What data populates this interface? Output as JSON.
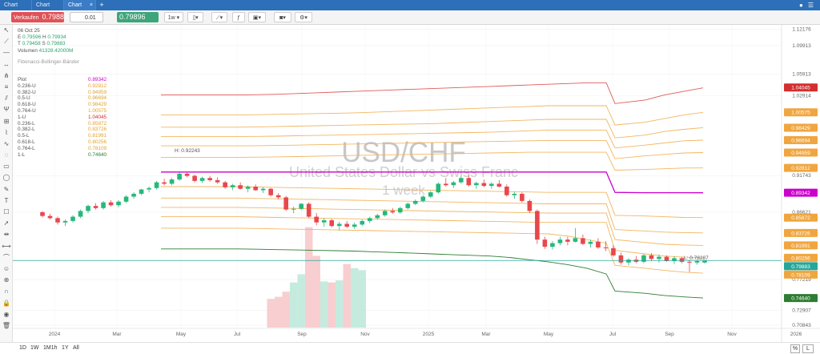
{
  "tabs": [
    "Chart",
    "Chart",
    "Chart"
  ],
  "tab_close": "×",
  "new_tab": "+",
  "toolbar": {
    "sell_label": "Verkaufen",
    "sell_price": "0.79883",
    "quantity": "0.01",
    "buy_price": "0.79896",
    "buy_label": "Kaufen",
    "timeframe": "1w"
  },
  "legend": {
    "date": "06 Oct 25",
    "open_label": "E",
    "open": "0.79596",
    "high_label": "H",
    "high": "0.79934",
    "low_label": "T",
    "low": "0.79458",
    "close_label": "S",
    "close": "0.79883",
    "volume_label": "Volumen",
    "volume": "41328.42000M",
    "indicator": "Fibonacci-Bollinger-Bänder"
  },
  "fib_table": [
    {
      "label": "Plot",
      "value": "0.89342",
      "color": "#cc00cc"
    },
    {
      "label": "0.236-U",
      "value": "0.92812",
      "color": "#e2a32e"
    },
    {
      "label": "0.382-U",
      "value": "0.94959",
      "color": "#e2a32e"
    },
    {
      "label": "0.5-U",
      "value": "0.96694",
      "color": "#e2a32e"
    },
    {
      "label": "0.618-U",
      "value": "0.98429",
      "color": "#e2a32e"
    },
    {
      "label": "0.764-U",
      "value": "1.00575",
      "color": "#e2a32e"
    },
    {
      "label": "1-U",
      "value": "1.04045",
      "color": "#d32f2f"
    },
    {
      "label": "0.236-L",
      "value": "0.85872",
      "color": "#e2a32e"
    },
    {
      "label": "0.382-L",
      "value": "0.83726",
      "color": "#e2a32e"
    },
    {
      "label": "0.5-L",
      "value": "0.81991",
      "color": "#e2a32e"
    },
    {
      "label": "0.618-L",
      "value": "0.80256",
      "color": "#e2a32e"
    },
    {
      "label": "0.764-L",
      "value": "0.78109",
      "color": "#e2a32e"
    },
    {
      "label": "1-L",
      "value": "0.74640",
      "color": "#2e7d32"
    }
  ],
  "watermark": {
    "symbol": "USD/CHF",
    "name": "United States Dollar vs Swiss Franc",
    "interval": "1 week"
  },
  "annotations": {
    "high": "H: 0.92243",
    "low": "L: 0.78287"
  },
  "y_axis_ticks": [
    "1.12176",
    "1.09913",
    "1.05913",
    "1.02914",
    "0.91743",
    "0.86621",
    "0.77219",
    "0.72907",
    "0.70843"
  ],
  "price_tags": [
    {
      "value": "1.04045",
      "color": "#d32f2f"
    },
    {
      "value": "1.00575",
      "color": "#f0a640"
    },
    {
      "value": "0.98429",
      "color": "#f0a640"
    },
    {
      "value": "0.96694",
      "color": "#f0a640"
    },
    {
      "value": "0.94959",
      "color": "#f0a640"
    },
    {
      "value": "0.92812",
      "color": "#f0a640"
    },
    {
      "value": "0.89342",
      "color": "#cc00cc"
    },
    {
      "value": "0.85872",
      "color": "#f0a640"
    },
    {
      "value": "0.83726",
      "color": "#f0a640"
    },
    {
      "value": "0.81991",
      "color": "#f0a640"
    },
    {
      "value": "0.80256",
      "color": "#f0a640"
    },
    {
      "value": "0.79883",
      "color": "#26a69a"
    },
    {
      "value": "0.78109",
      "color": "#f0a640"
    },
    {
      "value": "0.74640",
      "color": "#2e7d32"
    }
  ],
  "x_axis_labels": [
    "2024",
    "Mar",
    "May",
    "Jul",
    "Sep",
    "Nov",
    "2025",
    "Mar",
    "May",
    "Jul",
    "Sep",
    "Nov",
    "2026"
  ],
  "bottom": {
    "ranges": [
      "1D",
      "1W",
      "1M1h",
      "1Y",
      "All"
    ],
    "percent": "%",
    "log": "L"
  },
  "colors": {
    "up": "#26b87a",
    "down": "#e8474c",
    "current": "#26a69a"
  },
  "chart_data": {
    "type": "candlestick",
    "ohlc_note": "weekly candles estimated",
    "candles": [
      [
        0.8662,
        0.868,
        0.859,
        0.861
      ],
      [
        0.861,
        0.864,
        0.856,
        0.858
      ],
      [
        0.858,
        0.86,
        0.849,
        0.852
      ],
      [
        0.852,
        0.856,
        0.847,
        0.854
      ],
      [
        0.854,
        0.862,
        0.852,
        0.86
      ],
      [
        0.86,
        0.87,
        0.858,
        0.868
      ],
      [
        0.868,
        0.877,
        0.865,
        0.875
      ],
      [
        0.875,
        0.879,
        0.87,
        0.872
      ],
      [
        0.872,
        0.882,
        0.87,
        0.88
      ],
      [
        0.88,
        0.883,
        0.874,
        0.876
      ],
      [
        0.876,
        0.883,
        0.873,
        0.881
      ],
      [
        0.881,
        0.89,
        0.879,
        0.888
      ],
      [
        0.888,
        0.894,
        0.885,
        0.892
      ],
      [
        0.892,
        0.899,
        0.89,
        0.898
      ],
      [
        0.898,
        0.902,
        0.894,
        0.9
      ],
      [
        0.9,
        0.91,
        0.898,
        0.908
      ],
      [
        0.908,
        0.913,
        0.904,
        0.906
      ],
      [
        0.906,
        0.914,
        0.904,
        0.912
      ],
      [
        0.912,
        0.922,
        0.91,
        0.92
      ],
      [
        0.92,
        0.9224,
        0.915,
        0.917
      ],
      [
        0.917,
        0.919,
        0.908,
        0.91
      ],
      [
        0.91,
        0.916,
        0.907,
        0.914
      ],
      [
        0.914,
        0.917,
        0.909,
        0.911
      ],
      [
        0.911,
        0.915,
        0.906,
        0.908
      ],
      [
        0.908,
        0.91,
        0.899,
        0.901
      ],
      [
        0.901,
        0.906,
        0.897,
        0.904
      ],
      [
        0.904,
        0.908,
        0.898,
        0.899
      ],
      [
        0.899,
        0.904,
        0.894,
        0.902
      ],
      [
        0.902,
        0.905,
        0.896,
        0.897
      ],
      [
        0.897,
        0.901,
        0.893,
        0.899
      ],
      [
        0.899,
        0.9,
        0.888,
        0.89
      ],
      [
        0.89,
        0.893,
        0.884,
        0.887
      ],
      [
        0.887,
        0.889,
        0.868,
        0.87
      ],
      [
        0.87,
        0.874,
        0.865,
        0.871
      ],
      [
        0.871,
        0.879,
        0.869,
        0.878
      ],
      [
        0.878,
        0.88,
        0.858,
        0.86
      ],
      [
        0.86,
        0.865,
        0.848,
        0.852
      ],
      [
        0.852,
        0.858,
        0.846,
        0.855
      ],
      [
        0.855,
        0.857,
        0.845,
        0.847
      ],
      [
        0.847,
        0.853,
        0.841,
        0.85
      ],
      [
        0.85,
        0.854,
        0.844,
        0.846
      ],
      [
        0.846,
        0.852,
        0.843,
        0.849
      ],
      [
        0.849,
        0.856,
        0.847,
        0.854
      ],
      [
        0.854,
        0.86,
        0.851,
        0.858
      ],
      [
        0.858,
        0.864,
        0.856,
        0.862
      ],
      [
        0.862,
        0.87,
        0.86,
        0.868
      ],
      [
        0.868,
        0.872,
        0.864,
        0.866
      ],
      [
        0.866,
        0.874,
        0.864,
        0.872
      ],
      [
        0.872,
        0.88,
        0.87,
        0.878
      ],
      [
        0.878,
        0.884,
        0.876,
        0.882
      ],
      [
        0.882,
        0.89,
        0.88,
        0.888
      ],
      [
        0.888,
        0.896,
        0.886,
        0.894
      ],
      [
        0.894,
        0.908,
        0.892,
        0.906
      ],
      [
        0.906,
        0.914,
        0.902,
        0.904
      ],
      [
        0.904,
        0.91,
        0.9,
        0.908
      ],
      [
        0.908,
        0.916,
        0.906,
        0.914
      ],
      [
        0.914,
        0.918,
        0.902,
        0.904
      ],
      [
        0.904,
        0.909,
        0.899,
        0.907
      ],
      [
        0.907,
        0.912,
        0.901,
        0.903
      ],
      [
        0.903,
        0.908,
        0.899,
        0.906
      ],
      [
        0.906,
        0.911,
        0.901,
        0.902
      ],
      [
        0.902,
        0.905,
        0.888,
        0.89
      ],
      [
        0.89,
        0.895,
        0.885,
        0.892
      ],
      [
        0.892,
        0.894,
        0.88,
        0.882
      ],
      [
        0.882,
        0.884,
        0.865,
        0.868
      ],
      [
        0.868,
        0.87,
        0.822,
        0.828
      ],
      [
        0.828,
        0.832,
        0.815,
        0.818
      ],
      [
        0.818,
        0.826,
        0.814,
        0.823
      ],
      [
        0.823,
        0.832,
        0.82,
        0.828
      ],
      [
        0.828,
        0.832,
        0.82,
        0.825
      ],
      [
        0.825,
        0.844,
        0.824,
        0.83
      ],
      [
        0.83,
        0.835,
        0.82,
        0.822
      ],
      [
        0.822,
        0.828,
        0.817,
        0.825
      ],
      [
        0.825,
        0.83,
        0.815,
        0.817
      ],
      [
        0.817,
        0.826,
        0.812,
        0.816
      ],
      [
        0.816,
        0.82,
        0.804,
        0.806
      ],
      [
        0.806,
        0.81,
        0.793,
        0.796
      ],
      [
        0.796,
        0.802,
        0.792,
        0.8
      ],
      [
        0.8,
        0.805,
        0.795,
        0.797
      ],
      [
        0.797,
        0.808,
        0.795,
        0.806
      ],
      [
        0.806,
        0.809,
        0.798,
        0.801
      ],
      [
        0.801,
        0.807,
        0.796,
        0.804
      ],
      [
        0.804,
        0.806,
        0.797,
        0.798
      ],
      [
        0.798,
        0.805,
        0.794,
        0.802
      ],
      [
        0.802,
        0.804,
        0.795,
        0.797
      ],
      [
        0.797,
        0.8,
        0.7829,
        0.796
      ],
      [
        0.796,
        0.8,
        0.793,
        0.798
      ],
      [
        0.796,
        0.7993,
        0.7946,
        0.7988
      ]
    ],
    "volume": [
      0,
      0,
      0,
      0,
      0,
      0,
      0,
      0,
      0,
      0,
      0,
      0,
      0,
      0,
      0,
      0,
      0,
      0,
      0,
      0,
      0,
      0,
      0,
      0,
      0,
      0,
      0,
      0,
      0,
      0,
      0.28,
      0.3,
      0.35,
      0.44,
      0.52,
      0.98,
      0.7,
      0.45,
      0.44,
      0.46,
      0.62,
      0.58,
      0.56,
      0,
      0,
      0,
      0,
      0,
      0,
      0,
      0,
      0,
      0,
      0,
      0,
      0,
      0,
      0,
      0,
      0,
      0,
      0,
      0,
      0,
      0,
      0,
      0,
      0,
      0,
      0,
      0,
      0,
      0,
      0,
      0,
      0,
      0,
      0,
      0,
      0,
      0,
      0,
      0,
      0,
      0,
      0,
      0
    ],
    "bands": {
      "1-U": [
        1.03,
        1.03,
        1.03,
        1.03,
        1.03,
        1.0305,
        1.031,
        1.032,
        1.033,
        1.034,
        1.035,
        1.036,
        1.037,
        1.038,
        1.039,
        1.04,
        1.041,
        1.042,
        1.043,
        1.044,
        1.045,
        1.046,
        1.047,
        1.047,
        1.018,
        1.023,
        1.03,
        1.035,
        1.04
      ],
      "0.764-U": [
        1.002,
        1.002,
        1.002,
        1.002,
        1.002,
        1.0025,
        1.003,
        1.0035,
        1.004,
        1.0045,
        1.005,
        1.006,
        1.007,
        1.008,
        1.009,
        1.01,
        1.011,
        1.012,
        1.013,
        1.014,
        1.015,
        1.015,
        1.015,
        1.015,
        0.988,
        0.992,
        0.997,
        1.002,
        1.0057
      ],
      "0.618-U": [
        0.985,
        0.985,
        0.985,
        0.985,
        0.985,
        0.9855,
        0.986,
        0.9865,
        0.987,
        0.9875,
        0.988,
        0.9885,
        0.989,
        0.9895,
        0.99,
        0.991,
        0.992,
        0.993,
        0.994,
        0.995,
        0.996,
        0.996,
        0.996,
        0.996,
        0.97,
        0.974,
        0.979,
        0.982,
        0.9843
      ],
      "0.5-U": [
        0.972,
        0.972,
        0.972,
        0.972,
        0.972,
        0.9722,
        0.9725,
        0.973,
        0.9735,
        0.974,
        0.9745,
        0.975,
        0.9755,
        0.976,
        0.9765,
        0.977,
        0.9775,
        0.978,
        0.979,
        0.98,
        0.981,
        0.981,
        0.981,
        0.981,
        0.956,
        0.96,
        0.963,
        0.966,
        0.9669
      ],
      "0.382-U": [
        0.959,
        0.959,
        0.959,
        0.959,
        0.959,
        0.9592,
        0.9595,
        0.96,
        0.9605,
        0.961,
        0.9615,
        0.962,
        0.9625,
        0.963,
        0.9635,
        0.964,
        0.9645,
        0.965,
        0.9655,
        0.966,
        0.9665,
        0.9665,
        0.9665,
        0.9665,
        0.941,
        0.945,
        0.947,
        0.949,
        0.9496
      ],
      "0.236-U": [
        0.943,
        0.943,
        0.943,
        0.943,
        0.943,
        0.9432,
        0.9435,
        0.944,
        0.9445,
        0.945,
        0.9455,
        0.946,
        0.9465,
        0.947,
        0.9475,
        0.948,
        0.9485,
        0.949,
        0.9495,
        0.95,
        0.95,
        0.95,
        0.95,
        0.95,
        0.925,
        0.926,
        0.927,
        0.928,
        0.9281
      ],
      "Plot": [
        0.9224,
        0.9224,
        0.9224,
        0.9224,
        0.9224,
        0.9224,
        0.9224,
        0.9224,
        0.9224,
        0.9224,
        0.9224,
        0.9224,
        0.9224,
        0.9224,
        0.9224,
        0.9224,
        0.9224,
        0.9224,
        0.9224,
        0.9224,
        0.9224,
        0.9224,
        0.9224,
        0.9224,
        0.894,
        0.8935,
        0.8935,
        0.8935,
        0.8934
      ],
      "0.236-L": [
        0.902,
        0.902,
        0.902,
        0.902,
        0.902,
        0.9015,
        0.901,
        0.9005,
        0.9,
        0.8995,
        0.899,
        0.8985,
        0.898,
        0.8975,
        0.897,
        0.8965,
        0.896,
        0.8955,
        0.895,
        0.8945,
        0.894,
        0.894,
        0.894,
        0.894,
        0.862,
        0.861,
        0.86,
        0.859,
        0.8587
      ],
      "0.382-L": [
        0.886,
        0.886,
        0.886,
        0.886,
        0.886,
        0.8855,
        0.885,
        0.8845,
        0.884,
        0.8835,
        0.883,
        0.8825,
        0.882,
        0.8815,
        0.881,
        0.8805,
        0.88,
        0.8795,
        0.879,
        0.8785,
        0.878,
        0.878,
        0.878,
        0.878,
        0.842,
        0.84,
        0.8385,
        0.8378,
        0.8373
      ],
      "0.5-L": [
        0.873,
        0.873,
        0.873,
        0.873,
        0.873,
        0.8725,
        0.872,
        0.8715,
        0.871,
        0.8705,
        0.87,
        0.8695,
        0.869,
        0.8685,
        0.868,
        0.8675,
        0.867,
        0.8665,
        0.866,
        0.8655,
        0.865,
        0.865,
        0.865,
        0.865,
        0.828,
        0.824,
        0.8215,
        0.8205,
        0.8199
      ],
      "0.618-L": [
        0.86,
        0.86,
        0.86,
        0.86,
        0.86,
        0.8595,
        0.859,
        0.8585,
        0.858,
        0.8575,
        0.857,
        0.8565,
        0.856,
        0.8555,
        0.855,
        0.8545,
        0.854,
        0.8535,
        0.853,
        0.8525,
        0.852,
        0.852,
        0.852,
        0.852,
        0.813,
        0.808,
        0.805,
        0.8035,
        0.8026
      ],
      "0.764-L": [
        0.844,
        0.844,
        0.844,
        0.844,
        0.844,
        0.8435,
        0.843,
        0.8425,
        0.842,
        0.8415,
        0.841,
        0.8405,
        0.84,
        0.8395,
        0.839,
        0.8385,
        0.838,
        0.8375,
        0.837,
        0.8365,
        0.836,
        0.833,
        0.828,
        0.823,
        0.792,
        0.788,
        0.785,
        0.7825,
        0.7811
      ],
      "1-L": [
        0.815,
        0.815,
        0.815,
        0.815,
        0.815,
        0.8145,
        0.814,
        0.8135,
        0.813,
        0.8125,
        0.812,
        0.811,
        0.81,
        0.809,
        0.808,
        0.807,
        0.806,
        0.805,
        0.803,
        0.8,
        0.797,
        0.793,
        0.788,
        0.78,
        0.756,
        0.753,
        0.75,
        0.748,
        0.7464
      ]
    },
    "ylim": [
      0.704,
      1.128
    ]
  }
}
